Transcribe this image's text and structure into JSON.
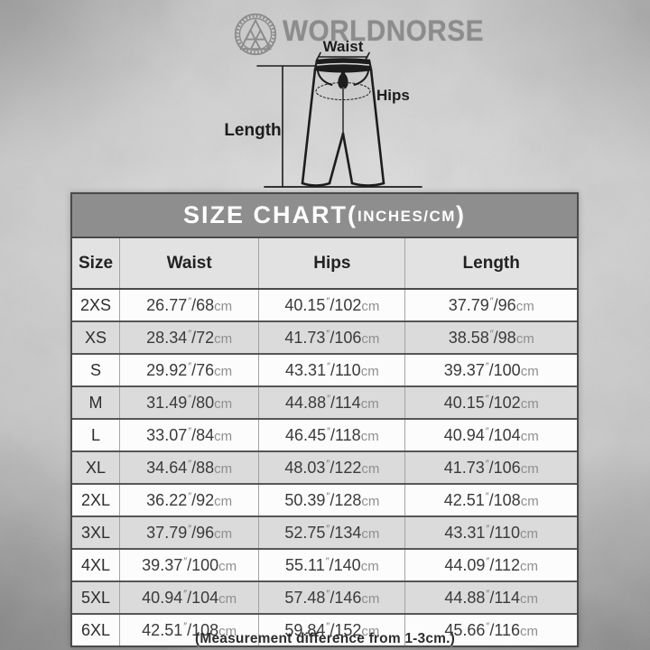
{
  "brand": {
    "name": "WORLDNORSE",
    "emblem": "valknut-ring"
  },
  "diagram": {
    "labels": {
      "waist": "Waist",
      "hips": "Hips",
      "length": "Length"
    }
  },
  "size_chart": {
    "title_main": "SIZE CHART(",
    "title_units": "INCHES/CM",
    "title_close": ")",
    "columns": [
      "Size",
      "Waist",
      "Hips",
      "Length"
    ],
    "inch_mark": "″",
    "slash": "/",
    "cm_unit": "cm",
    "rows": [
      {
        "size": "2XS",
        "waist": [
          "26.77",
          "68"
        ],
        "hips": [
          "40.15",
          "102"
        ],
        "length": [
          "37.79",
          "96"
        ]
      },
      {
        "size": "XS",
        "waist": [
          "28.34",
          "72"
        ],
        "hips": [
          "41.73",
          "106"
        ],
        "length": [
          "38.58",
          "98"
        ]
      },
      {
        "size": "S",
        "waist": [
          "29.92",
          "76"
        ],
        "hips": [
          "43.31",
          "110"
        ],
        "length": [
          "39.37",
          "100"
        ]
      },
      {
        "size": "M",
        "waist": [
          "31.49",
          "80"
        ],
        "hips": [
          "44.88",
          "114"
        ],
        "length": [
          "40.15",
          "102"
        ]
      },
      {
        "size": "L",
        "waist": [
          "33.07",
          "84"
        ],
        "hips": [
          "46.45",
          "118"
        ],
        "length": [
          "40.94",
          "104"
        ]
      },
      {
        "size": "XL",
        "waist": [
          "34.64",
          "88"
        ],
        "hips": [
          "48.03",
          "122"
        ],
        "length": [
          "41.73",
          "106"
        ]
      },
      {
        "size": "2XL",
        "waist": [
          "36.22",
          "92"
        ],
        "hips": [
          "50.39",
          "128"
        ],
        "length": [
          "42.51",
          "108"
        ]
      },
      {
        "size": "3XL",
        "waist": [
          "37.79",
          "96"
        ],
        "hips": [
          "52.75",
          "134"
        ],
        "length": [
          "43.31",
          "110"
        ]
      },
      {
        "size": "4XL",
        "waist": [
          "39.37",
          "100"
        ],
        "hips": [
          "55.11",
          "140"
        ],
        "length": [
          "44.09",
          "112"
        ]
      },
      {
        "size": "5XL",
        "waist": [
          "40.94",
          "104"
        ],
        "hips": [
          "57.48",
          "146"
        ],
        "length": [
          "44.88",
          "114"
        ]
      },
      {
        "size": "6XL",
        "waist": [
          "42.51",
          "108"
        ],
        "hips": [
          "59.84",
          "152"
        ],
        "length": [
          "45.66",
          "116"
        ]
      }
    ]
  },
  "footer": {
    "note": "(Measurement difference from 1-3cm.)"
  },
  "colors": {
    "title_bar_bg": "#8e8e8e",
    "header_row_bg": "#e2e2e2",
    "row_alt_bg": "#dbdbdb",
    "row_bg": "#fcfcfc",
    "border_dark": "#4a4a4a",
    "border_light": "#a3a3a3",
    "text_dark": "#2e2e2e",
    "unit_gray": "#8f8f8f",
    "logo_gray": "#8c8c8c"
  }
}
